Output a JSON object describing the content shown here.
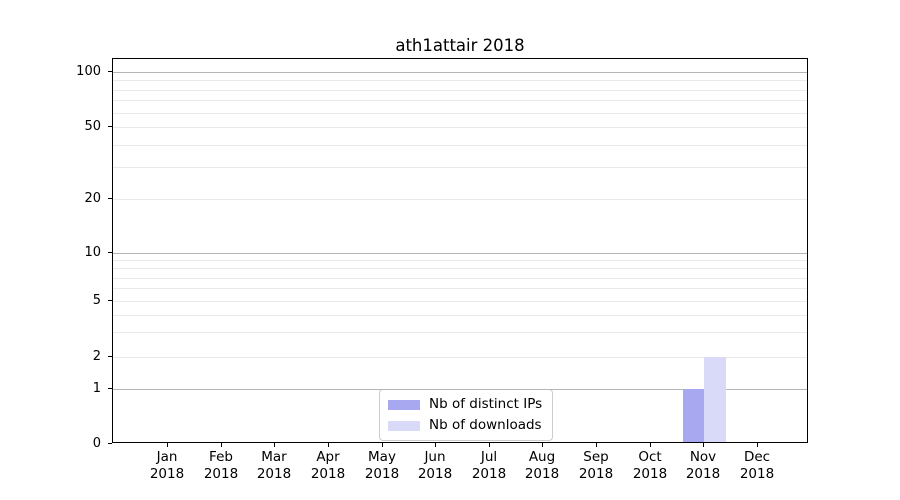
{
  "chart_data": {
    "type": "bar",
    "title": "ath1attair 2018",
    "categories": [
      "Jan 2018",
      "Feb 2018",
      "Mar 2018",
      "Apr 2018",
      "May 2018",
      "Jun 2018",
      "Jul 2018",
      "Aug 2018",
      "Sep 2018",
      "Oct 2018",
      "Nov 2018",
      "Dec 2018"
    ],
    "series": [
      {
        "name": "Nb of distinct IPs",
        "color": "#a8a8f0",
        "values": [
          0,
          0,
          0,
          0,
          0,
          0,
          0,
          0,
          0,
          0,
          1,
          0
        ]
      },
      {
        "name": "Nb of downloads",
        "color": "#d9d9f8",
        "values": [
          0,
          0,
          0,
          0,
          0,
          0,
          0,
          0,
          0,
          0,
          2,
          0
        ]
      }
    ],
    "xlabel": "",
    "ylabel": "",
    "yscale": "symlog",
    "ylim": [
      0,
      120
    ],
    "ytick_labels": [
      "100",
      "50",
      "20",
      "10",
      "5",
      "2",
      "1",
      "0"
    ],
    "ytick_values": [
      100,
      50,
      20,
      10,
      5,
      2,
      1,
      0
    ],
    "major_grid_values": [
      100,
      10,
      1
    ],
    "minor_grid_values": [
      90,
      80,
      70,
      60,
      40,
      30,
      9,
      8,
      7,
      6,
      4,
      3
    ],
    "grid": true,
    "legend_position": "lower center"
  }
}
